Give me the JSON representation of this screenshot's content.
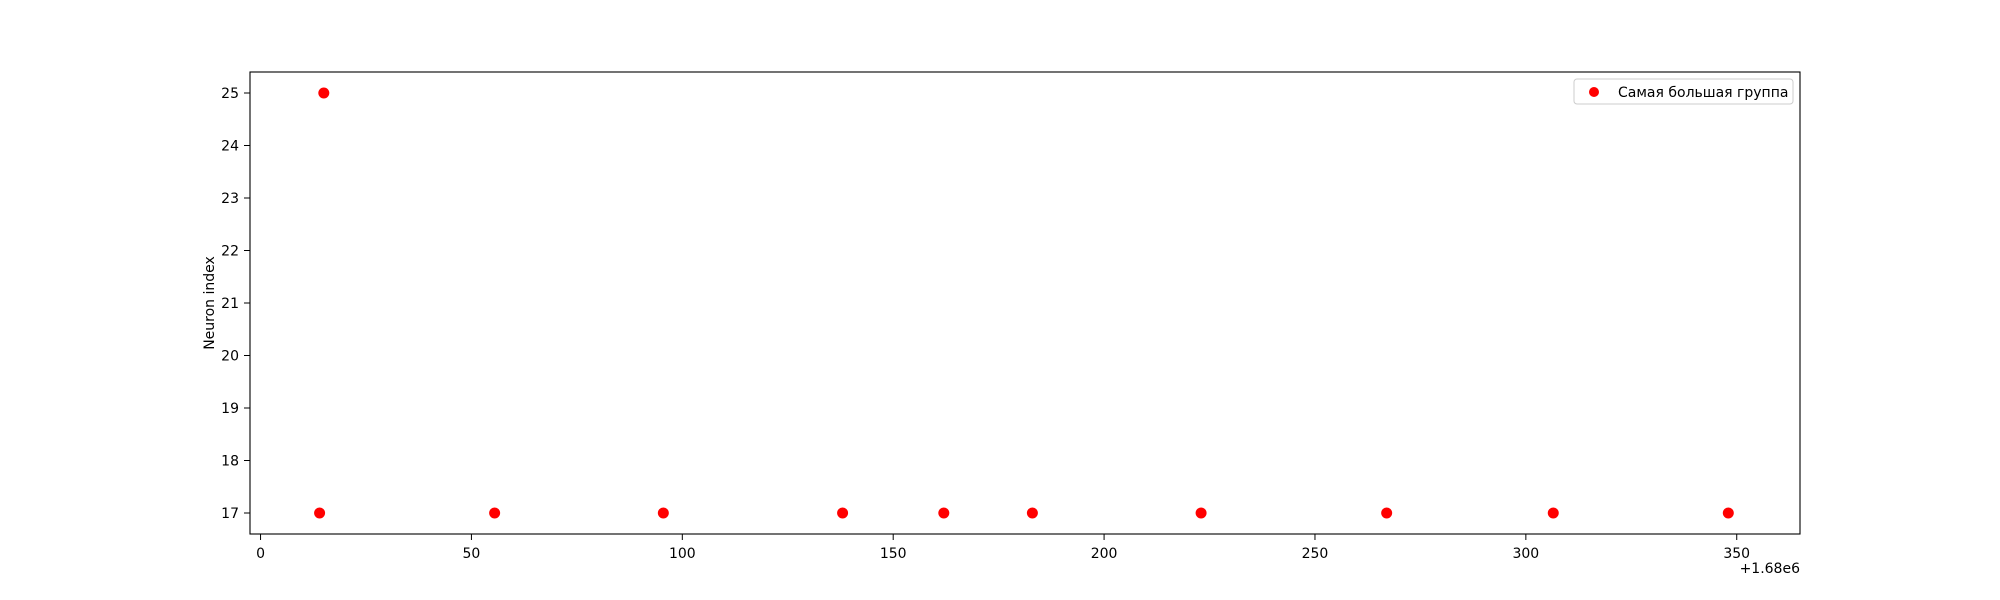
{
  "chart_data": {
    "type": "scatter",
    "title": "",
    "xlabel": "",
    "ylabel": "Neuron index",
    "x_offset_label": "+1.68e6",
    "xlim": [
      -2.5,
      365
    ],
    "ylim": [
      16.6,
      25.4
    ],
    "xticks": [
      0,
      50,
      100,
      150,
      200,
      250,
      300,
      350
    ],
    "xtick_labels": [
      "0",
      "50",
      "100",
      "150",
      "200",
      "250",
      "300",
      "350"
    ],
    "yticks": [
      17,
      18,
      19,
      20,
      21,
      22,
      23,
      24,
      25
    ],
    "ytick_labels": [
      "17",
      "18",
      "19",
      "20",
      "21",
      "22",
      "23",
      "24",
      "25"
    ],
    "grid": false,
    "legend_position": "top-right",
    "series": [
      {
        "name": "Самая большая группа",
        "color": "#ff0000",
        "x": [
          14,
          15,
          55.5,
          95.5,
          138,
          162,
          183,
          223,
          267,
          306.5,
          348
        ],
        "y": [
          17,
          25,
          17,
          17,
          17,
          17,
          17,
          17,
          17,
          17,
          17
        ]
      }
    ]
  }
}
